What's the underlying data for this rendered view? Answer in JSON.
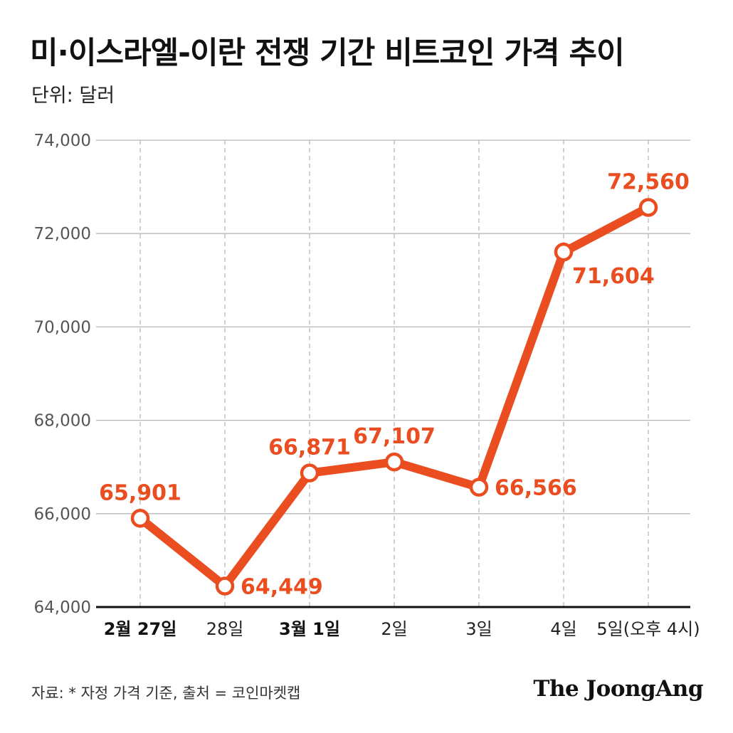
{
  "header": {
    "title": "미·이스라엘-이란 전쟁 기간 비트코인 가격 추이",
    "unit": "단위: 달러"
  },
  "footer": {
    "source": "자료: * 자정 가격 기준, 출처 = 코인마켓캡",
    "brand": "The JoongAng"
  },
  "colors": {
    "line": "#ea4d1f",
    "label": "#ea4d1f",
    "grid": "#b8b8b8",
    "axis": "#111111"
  },
  "chart_data": {
    "type": "line",
    "title": "미·이스라엘-이란 전쟁 기간 비트코인 가격 추이",
    "ylabel": "단위: 달러",
    "xlabel": "",
    "categories": [
      "2월 27일",
      "28일",
      "3월 1일",
      "2일",
      "3일",
      "4일",
      "5일(오후 4시)"
    ],
    "bold_categories": [
      true,
      false,
      true,
      false,
      false,
      false,
      false
    ],
    "values": [
      65901,
      64449,
      66871,
      67107,
      66566,
      71604,
      72560
    ],
    "data_labels": [
      "65,901",
      "64,449",
      "66,871",
      "67,107",
      "66,566",
      "71,604",
      "72,560"
    ],
    "label_positions": [
      "above",
      "right",
      "above",
      "above",
      "right",
      "below-right",
      "above"
    ],
    "ylim": [
      64000,
      74000
    ],
    "yticks": [
      64000,
      66000,
      68000,
      70000,
      72000,
      74000
    ],
    "ytick_labels": [
      "64,000",
      "66,000",
      "68,000",
      "70,000",
      "72,000",
      "74,000"
    ],
    "grid": true
  }
}
